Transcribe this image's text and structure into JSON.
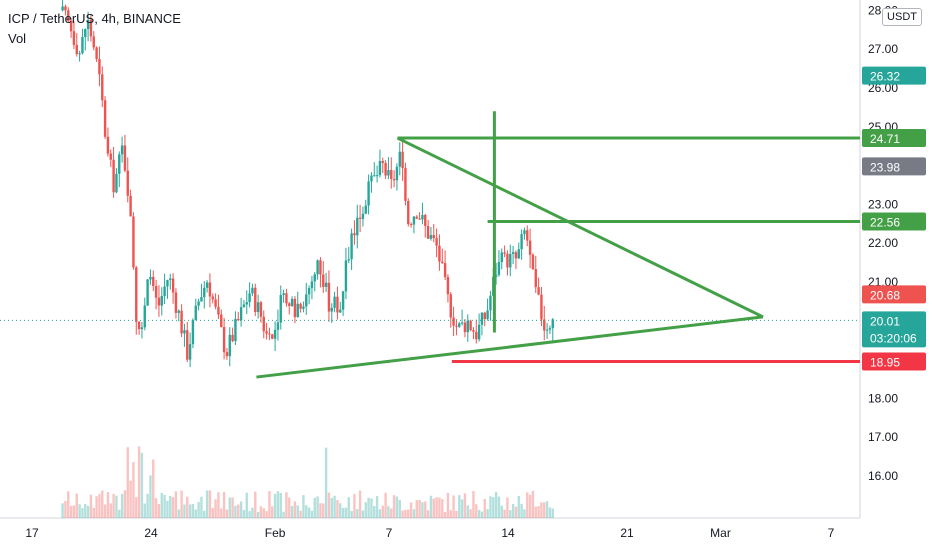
{
  "header": {
    "symbol": "ICP / TetherUS, 4h, BINANCE",
    "volume_label": "Vol",
    "currency": "USDT"
  },
  "chart_data": {
    "type": "candlestick",
    "y_ticks": [
      "27.00",
      "26.00",
      "25.00",
      "23.00",
      "22.00",
      "21.00",
      "18.00",
      "17.00",
      "16.00"
    ],
    "y_top_label": "28.00",
    "x_ticks": [
      "17",
      "24",
      "Feb",
      "7",
      "14",
      "21",
      "Mar",
      "7"
    ],
    "ylim": [
      15.2,
      28.1
    ],
    "price_badges": [
      {
        "value": "26.32",
        "color": "#26a69a"
      },
      {
        "value": "24.71",
        "color": "#43a047"
      },
      {
        "value": "23.98",
        "color": "#787b86"
      },
      {
        "value": "22.56",
        "color": "#43a047"
      },
      {
        "value": "20.68",
        "color": "#ef5350"
      },
      {
        "value": "20.01",
        "color": "#26a69a",
        "countdown": "03:20:06"
      },
      {
        "value": "18.95",
        "color": "#f23645"
      }
    ],
    "current_price": 20.01,
    "annotations": {
      "triangle_upper": [
        [
          8.0,
          24.71
        ],
        [
          29.5,
          20.1
        ]
      ],
      "triangle_lower": [
        [
          -0.3,
          18.55
        ],
        [
          29.5,
          20.1
        ]
      ],
      "resistance_1": {
        "from": 8.0,
        "to": 37.0,
        "y": 24.71
      },
      "resistance_2": {
        "from": 13.3,
        "to": 37.0,
        "y": 22.56
      },
      "support": {
        "from": 11.2,
        "to": 37.0,
        "y": 18.95
      },
      "vertical_line": {
        "x": 13.7,
        "from": 19.7,
        "to": 25.4
      }
    },
    "colors": {
      "up": "#26a69a",
      "down": "#ef5350",
      "annotation_green": "#43a047",
      "support_red": "#f23645"
    }
  }
}
